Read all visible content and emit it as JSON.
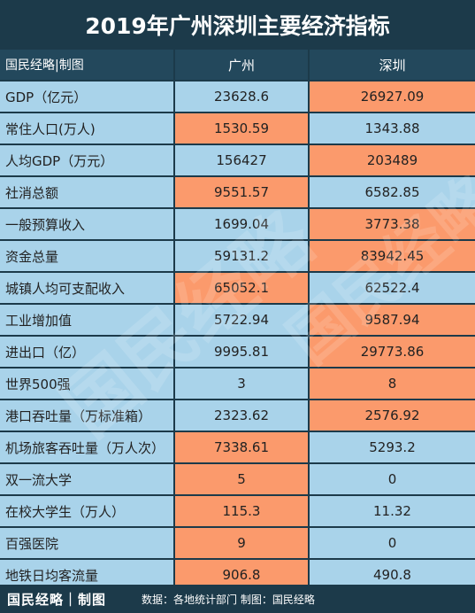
{
  "title": "2019年广州深圳主要经济指标",
  "colors": {
    "blue": "#a9d3ea",
    "orange": "#fb9a6c",
    "header": "#23485c",
    "dark": "#1c3a4a"
  },
  "header": {
    "label": "国民经略|制图",
    "col1": "广州",
    "col2": "深圳"
  },
  "rows": [
    {
      "label": "GDP（亿元）",
      "gz": "23628.6",
      "sz": "26927.09",
      "higher": "sz"
    },
    {
      "label": "常住人口(万人)",
      "gz": "1530.59",
      "sz": "1343.88",
      "higher": "gz"
    },
    {
      "label": "人均GDP（万元）",
      "gz": "156427",
      "sz": "203489",
      "higher": "sz"
    },
    {
      "label": "社消总额",
      "gz": "9551.57",
      "sz": "6582.85",
      "higher": "gz"
    },
    {
      "label": "一般预算收入",
      "gz": "1699.04",
      "sz": "3773.38",
      "higher": "sz"
    },
    {
      "label": "资金总量",
      "gz": "59131.2",
      "sz": "83942.45",
      "higher": "sz"
    },
    {
      "label": "城镇人均可支配收入",
      "gz": "65052.1",
      "sz": "62522.4",
      "higher": "gz"
    },
    {
      "label": "工业增加值",
      "gz": "5722.94",
      "sz": "9587.94",
      "higher": "sz"
    },
    {
      "label": "进出口（亿）",
      "gz": "9995.81",
      "sz": "29773.86",
      "higher": "sz"
    },
    {
      "label": "世界500强",
      "gz": "3",
      "sz": "8",
      "higher": "sz"
    },
    {
      "label": "港口吞吐量（万标准箱）",
      "gz": "2323.62",
      "sz": "2576.92",
      "higher": "sz"
    },
    {
      "label": "机场旅客吞吐量（万人次）",
      "gz": "7338.61",
      "sz": "5293.2",
      "higher": "gz"
    },
    {
      "label": "双一流大学",
      "gz": "5",
      "sz": "0",
      "higher": "gz"
    },
    {
      "label": "在校大学生（万人）",
      "gz": "115.3",
      "sz": "11.32",
      "higher": "gz"
    },
    {
      "label": "百强医院",
      "gz": "9",
      "sz": "0",
      "higher": "gz"
    },
    {
      "label": "地铁日均客流量",
      "gz": "906.8",
      "sz": "490.8",
      "higher": "gz"
    }
  ],
  "footer": {
    "brand": "国民经略｜制图",
    "source": "数据：各地统计部门  制图：国民经略"
  },
  "watermark": "国民经略"
}
